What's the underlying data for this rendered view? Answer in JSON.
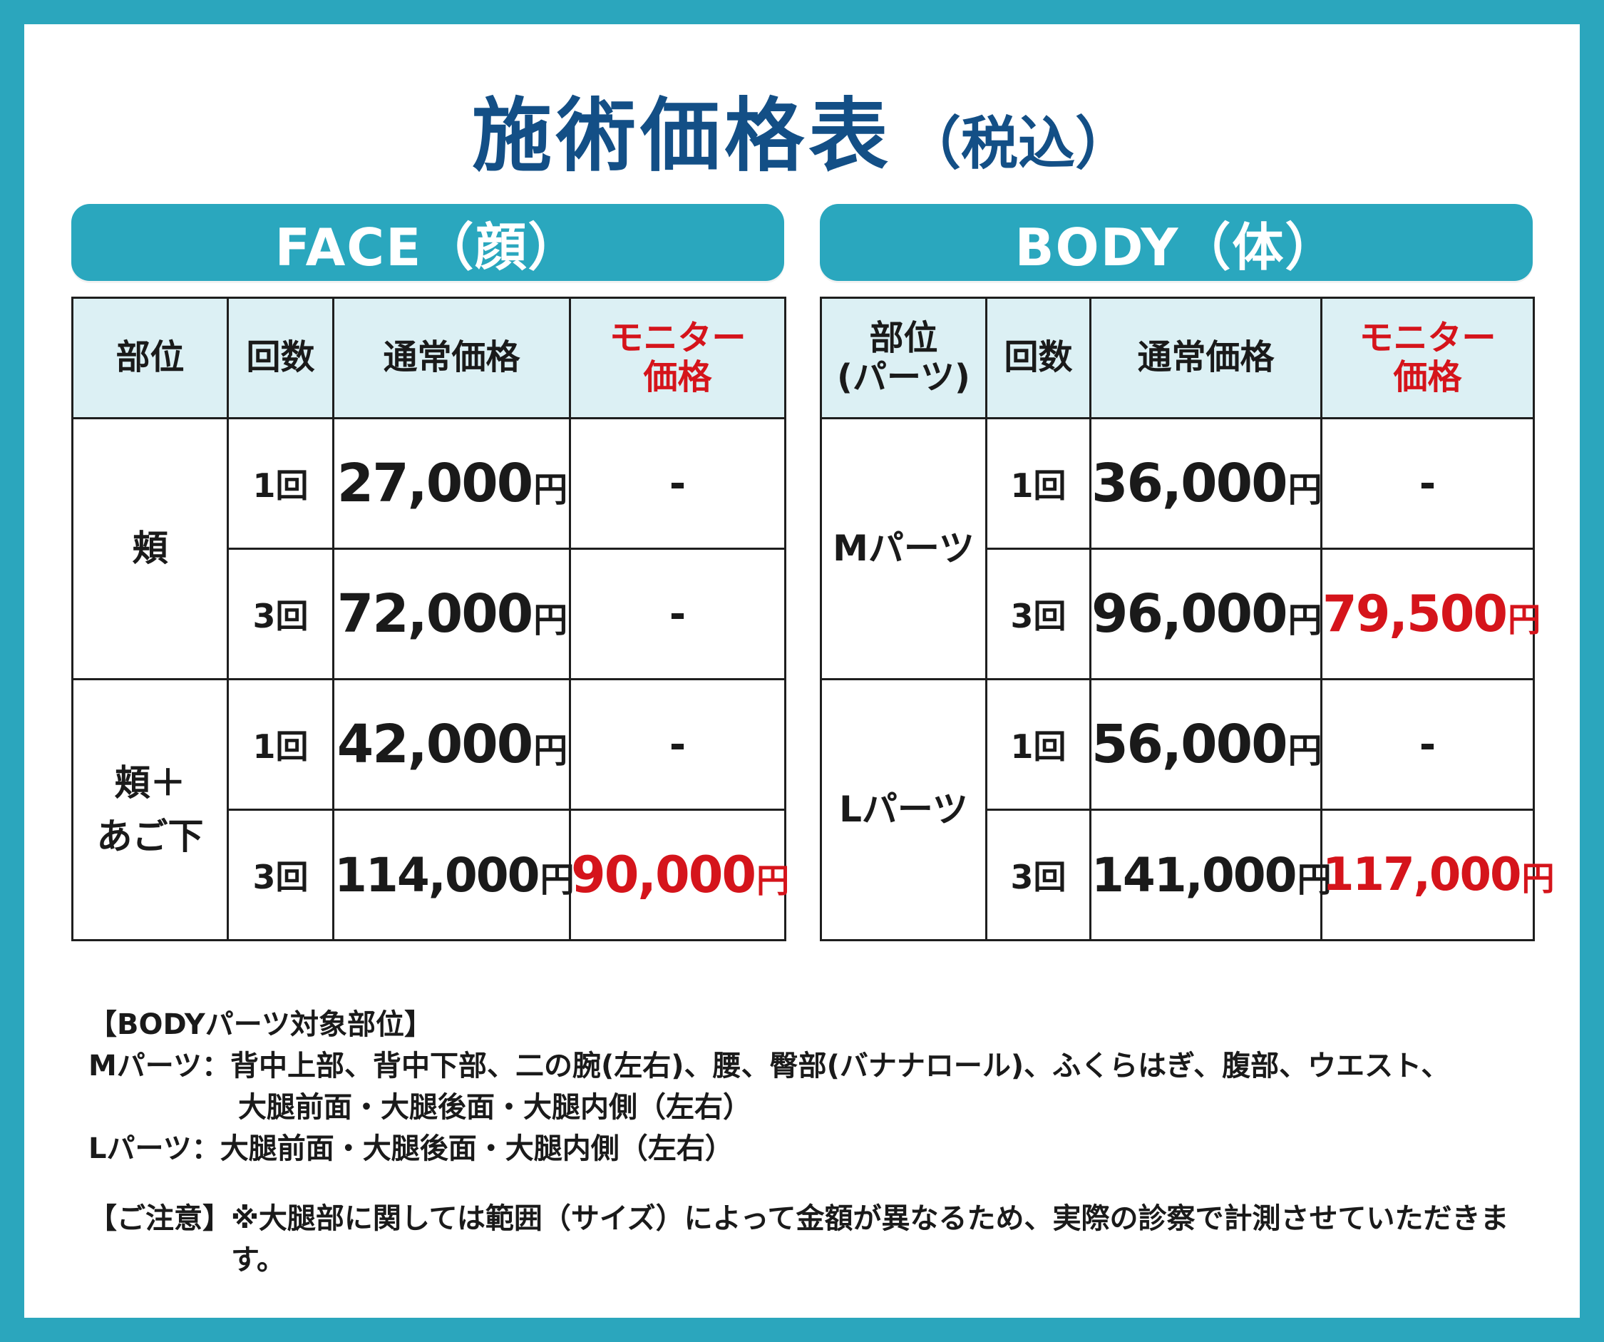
{
  "title": {
    "main": "施術価格表",
    "sub": "（税込）"
  },
  "face": {
    "heading": "FACE（顔）",
    "headers": {
      "part": "部位",
      "count": "回数",
      "regular": "通常価格",
      "monitor_line1": "モニター",
      "monitor_line2": "価格"
    },
    "groups": [
      {
        "part_line1": "頬",
        "part_line2": "",
        "rows": [
          {
            "count": "1回",
            "regular": "27,000",
            "monitor": "-"
          },
          {
            "count": "3回",
            "regular": "72,000",
            "monitor": "-"
          }
        ]
      },
      {
        "part_line1": "頬＋",
        "part_line2": "あご下",
        "rows": [
          {
            "count": "1回",
            "regular": "42,000",
            "monitor": "-"
          },
          {
            "count": "3回",
            "regular": "114,000",
            "monitor": "90,000"
          }
        ]
      }
    ]
  },
  "body": {
    "heading": "BODY（体）",
    "headers": {
      "part_line1": "部位",
      "part_line2": "(パーツ)",
      "count": "回数",
      "regular": "通常価格",
      "monitor_line1": "モニター",
      "monitor_line2": "価格"
    },
    "groups": [
      {
        "part_line1": "Mパーツ",
        "rows": [
          {
            "count": "1回",
            "regular": "36,000",
            "monitor": "-"
          },
          {
            "count": "3回",
            "regular": "96,000",
            "monitor": "79,500"
          }
        ]
      },
      {
        "part_line1": "Lパーツ",
        "rows": [
          {
            "count": "1回",
            "regular": "56,000",
            "monitor": "-"
          },
          {
            "count": "3回",
            "regular": "141,000",
            "monitor": "117,000"
          }
        ]
      }
    ]
  },
  "yen": "円",
  "notes": {
    "target_heading": "【BODYパーツ対象部位】",
    "m_label": "Mパーツ：",
    "m_line1": "背中上部、背中下部、二の腕(左右)、腰、臀部(バナナロール)、ふくらはぎ、腹部、ウエスト、",
    "m_line2": "大腿前面・大腿後面・大腿内側（左右）",
    "l_label": "Lパーツ：",
    "l_line1": "大腿前面・大腿後面・大腿内側（左右）",
    "caution_label": "【ご注意】",
    "caution_text": "※大腿部に関しては範囲（サイズ）によって金額が異なるため、実際の診察で計測させていただきます。"
  },
  "colors": {
    "frame": "#2ba6bd",
    "title": "#134f86",
    "header_bg": "#dcf0f4",
    "accent_red": "#d5141b"
  }
}
